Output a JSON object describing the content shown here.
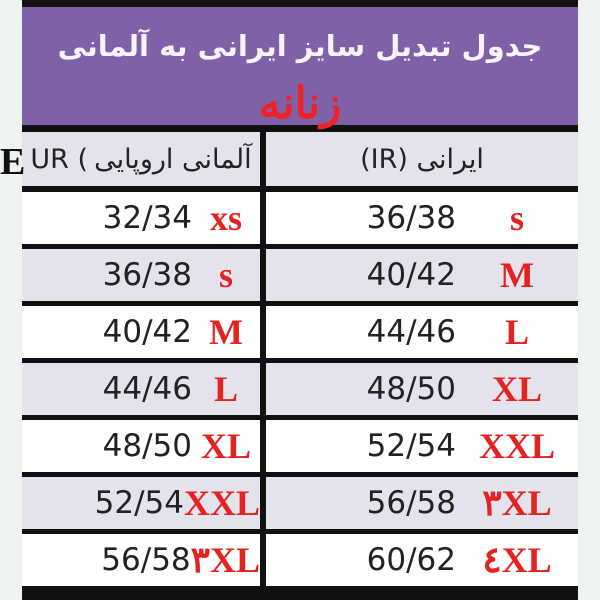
{
  "title": "جدول تبدیل سایز ایرانی به آلمانی",
  "subtitle": "زنانه",
  "headers": {
    "eur_prefix": "E",
    "eur_code": "UR (",
    "eur_text": "آلمانی اروپایی",
    "ir": "ایرانی (IR)"
  },
  "colors": {
    "purple": "#7e61a6",
    "red": "#e52222",
    "row_alt": "#e4e2ec"
  },
  "rows": [
    {
      "eur": "32/34",
      "eur_size": "xs",
      "ir": "36/38",
      "ir_size": "s"
    },
    {
      "eur": "36/38",
      "eur_size": "s",
      "ir": "40/42",
      "ir_size": "M"
    },
    {
      "eur": "40/42",
      "eur_size": "M",
      "ir": "44/46",
      "ir_size": "L"
    },
    {
      "eur": "44/46",
      "eur_size": "L",
      "ir": "48/50",
      "ir_size": "XL"
    },
    {
      "eur": "48/50",
      "eur_size": "XL",
      "ir": "52/54",
      "ir_size": "XXL"
    },
    {
      "eur": "52/54",
      "eur_size": "XXL",
      "ir": "56/58",
      "ir_size": "٣XL"
    },
    {
      "eur": "56/58",
      "eur_size": "٣XL",
      "ir": "60/62",
      "ir_size": "٤XL"
    }
  ]
}
